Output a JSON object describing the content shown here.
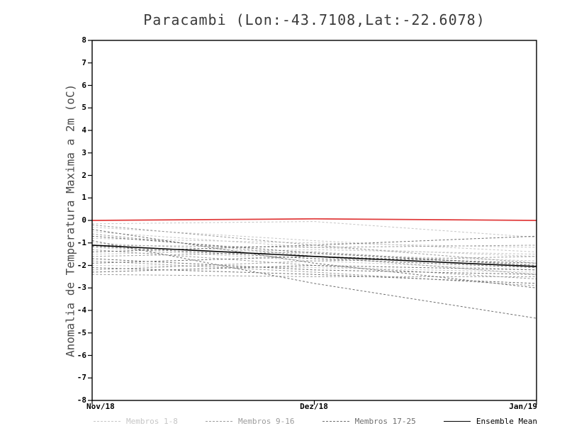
{
  "title": "Paracambi (Lon:-43.7108,Lat:-22.6078)",
  "chart_data": {
    "type": "line",
    "x": [
      "Nov/18",
      "Dez/18",
      "Jan/19"
    ],
    "xlabel": "",
    "ylabel": "Anomalia de Temperatura Maxima a 2m (oC)",
    "ylim": [
      -8,
      8
    ],
    "ytick_step": 1,
    "grid": false,
    "legend_position": "bottom",
    "legend": [
      {
        "label": "Membros 1-8",
        "color": "#c6c6c6",
        "dashed": true
      },
      {
        "label": "Membros 9-16",
        "color": "#9c9c9c",
        "dashed": true
      },
      {
        "label": "Membros 17-25",
        "color": "#6f6f6f",
        "dashed": true
      },
      {
        "label": "Ensemble Mean",
        "color": "#000000",
        "dashed": false
      }
    ],
    "series": [
      {
        "name": "Membro 1",
        "group": "membros-1-8",
        "color": "#c6c6c6",
        "dashed": true,
        "width": 1,
        "values": [
          -0.15,
          -0.05,
          -0.75
        ]
      },
      {
        "name": "Membro 2",
        "group": "membros-1-8",
        "color": "#c6c6c6",
        "dashed": true,
        "width": 1,
        "values": [
          -0.3,
          -0.9,
          -1.4
        ]
      },
      {
        "name": "Membro 3",
        "group": "membros-1-8",
        "color": "#c6c6c6",
        "dashed": true,
        "width": 1,
        "values": [
          -0.5,
          -1.2,
          -1.6
        ]
      },
      {
        "name": "Membro 4",
        "group": "membros-1-8",
        "color": "#c6c6c6",
        "dashed": true,
        "width": 1,
        "values": [
          -0.8,
          -1.0,
          -1.2
        ]
      },
      {
        "name": "Membro 5",
        "group": "membros-1-8",
        "color": "#c6c6c6",
        "dashed": true,
        "width": 1,
        "values": [
          -1.0,
          -1.5,
          -1.8
        ]
      },
      {
        "name": "Membro 6",
        "group": "membros-1-8",
        "color": "#c6c6c6",
        "dashed": true,
        "width": 1,
        "values": [
          -1.2,
          -1.8,
          -2.2
        ]
      },
      {
        "name": "Membro 7",
        "group": "membros-1-8",
        "color": "#c6c6c6",
        "dashed": true,
        "width": 1,
        "values": [
          -1.5,
          -1.3,
          -1.5
        ]
      },
      {
        "name": "Membro 8",
        "group": "membros-1-8",
        "color": "#c6c6c6",
        "dashed": true,
        "width": 1,
        "values": [
          -2.0,
          -2.1,
          -2.3
        ]
      },
      {
        "name": "Membro 9",
        "group": "membros-9-16",
        "color": "#9c9c9c",
        "dashed": true,
        "width": 1,
        "values": [
          -0.2,
          -1.1,
          -1.9
        ]
      },
      {
        "name": "Membro 10",
        "group": "membros-9-16",
        "color": "#9c9c9c",
        "dashed": true,
        "width": 1,
        "values": [
          -0.6,
          -1.6,
          -2.4
        ]
      },
      {
        "name": "Membro 11",
        "group": "membros-9-16",
        "color": "#9c9c9c",
        "dashed": true,
        "width": 1,
        "values": [
          -1.1,
          -1.2,
          -1.1
        ]
      },
      {
        "name": "Membro 12",
        "group": "membros-9-16",
        "color": "#9c9c9c",
        "dashed": true,
        "width": 1,
        "values": [
          -1.3,
          -2.0,
          -2.6
        ]
      },
      {
        "name": "Membro 13",
        "group": "membros-9-16",
        "color": "#9c9c9c",
        "dashed": true,
        "width": 1,
        "values": [
          -1.6,
          -1.4,
          -2.0
        ]
      },
      {
        "name": "Membro 14",
        "group": "membros-9-16",
        "color": "#9c9c9c",
        "dashed": true,
        "width": 1,
        "values": [
          -1.8,
          -2.3,
          -2.9
        ]
      },
      {
        "name": "Membro 15",
        "group": "membros-9-16",
        "color": "#9c9c9c",
        "dashed": true,
        "width": 1,
        "values": [
          -2.2,
          -1.8,
          -1.6
        ]
      },
      {
        "name": "Membro 16",
        "group": "membros-9-16",
        "color": "#9c9c9c",
        "dashed": true,
        "width": 1,
        "values": [
          -2.4,
          -2.5,
          -2.5
        ]
      },
      {
        "name": "Membro 17",
        "group": "membros-17-25",
        "color": "#6f6f6f",
        "dashed": true,
        "width": 1,
        "values": [
          -0.4,
          -1.9,
          -3.0
        ]
      },
      {
        "name": "Membro 18",
        "group": "membros-17-25",
        "color": "#6f6f6f",
        "dashed": true,
        "width": 1,
        "values": [
          -0.9,
          -2.8,
          -4.35
        ]
      },
      {
        "name": "Membro 19",
        "group": "membros-17-25",
        "color": "#6f6f6f",
        "dashed": true,
        "width": 1,
        "values": [
          -1.15,
          -1.7,
          -2.1
        ]
      },
      {
        "name": "Membro 20",
        "group": "membros-17-25",
        "color": "#6f6f6f",
        "dashed": true,
        "width": 1,
        "values": [
          -1.4,
          -1.1,
          -0.7
        ]
      },
      {
        "name": "Membro 21",
        "group": "membros-17-25",
        "color": "#6f6f6f",
        "dashed": true,
        "width": 1,
        "values": [
          -1.7,
          -2.2,
          -2.4
        ]
      },
      {
        "name": "Membro 22",
        "group": "membros-17-25",
        "color": "#6f6f6f",
        "dashed": true,
        "width": 1,
        "values": [
          -1.9,
          -1.6,
          -1.9
        ]
      },
      {
        "name": "Membro 23",
        "group": "membros-17-25",
        "color": "#6f6f6f",
        "dashed": true,
        "width": 1,
        "values": [
          -2.1,
          -2.4,
          -2.8
        ]
      },
      {
        "name": "Membro 24",
        "group": "membros-17-25",
        "color": "#6f6f6f",
        "dashed": true,
        "width": 1,
        "values": [
          -2.3,
          -2.0,
          -2.2
        ]
      },
      {
        "name": "Membro 25",
        "group": "membros-17-25",
        "color": "#6f6f6f",
        "dashed": true,
        "width": 1,
        "values": [
          -0.7,
          -1.45,
          -2.0
        ]
      },
      {
        "name": "Ensemble Mean",
        "group": "ensemble-mean",
        "color": "#000000",
        "dashed": false,
        "width": 1.6,
        "values": [
          -1.1,
          -1.6,
          -2.05
        ]
      },
      {
        "name": "Zero Reference",
        "group": "zero-reference",
        "color": "#e03a3a",
        "dashed": false,
        "width": 1.8,
        "values": [
          0.0,
          0.07,
          0.0
        ]
      }
    ]
  }
}
